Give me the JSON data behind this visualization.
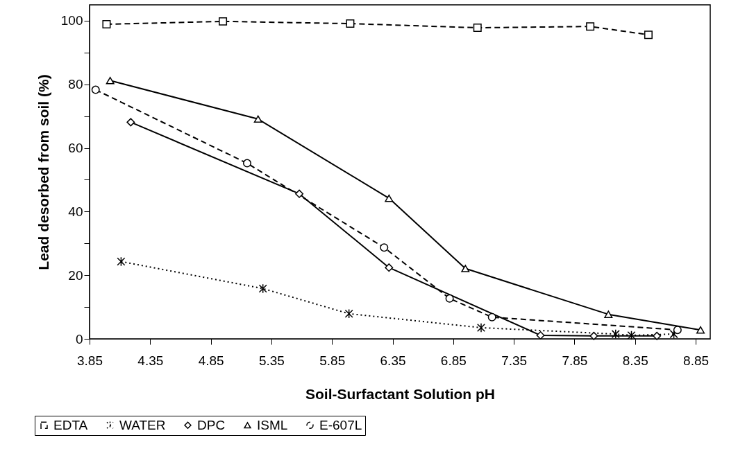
{
  "chart_data": {
    "type": "line",
    "xlabel": "Soil-Surfactant Solution pH",
    "ylabel": "Lead desorbed from soil (%)",
    "xlim": [
      3.85,
      8.97
    ],
    "xticks": [
      3.85,
      4.35,
      4.85,
      5.35,
      5.85,
      6.35,
      6.85,
      7.35,
      7.85,
      8.35,
      8.85
    ],
    "ylim": [
      0,
      105
    ],
    "yticks": [
      0,
      {
        "value": 10,
        "label": null
      },
      20,
      {
        "value": 30,
        "label": null
      },
      40,
      {
        "value": 50,
        "label": null
      },
      60,
      {
        "value": 70,
        "label": null
      },
      80,
      {
        "value": 90,
        "label": null
      },
      100
    ],
    "legend": "bottom",
    "grid": false,
    "series": [
      {
        "name": "EDTA",
        "color": "#000000",
        "marker": "square",
        "line_style": "dashed",
        "x": [
          3.99,
          4.95,
          6.0,
          7.05,
          7.98,
          8.46
        ],
        "values": [
          98.9,
          99.8,
          99.1,
          97.8,
          98.2,
          95.6
        ]
      },
      {
        "name": "WATER",
        "color": "#000000",
        "marker": "cross",
        "line_style": "dotted",
        "x": [
          4.11,
          5.28,
          5.99,
          7.08,
          8.19,
          8.32,
          8.67
        ],
        "values": [
          24.3,
          15.8,
          7.9,
          3.5,
          1.5,
          1.1,
          1.5
        ]
      },
      {
        "name": "DPC",
        "color": "#000000",
        "marker": "diamond",
        "line_style": "solid",
        "x": [
          4.19,
          5.58,
          6.32,
          7.57,
          8.01,
          8.53
        ],
        "values": [
          68.1,
          45.6,
          22.4,
          1.1,
          0.9,
          0.9
        ]
      },
      {
        "name": "ISML",
        "color": "#000000",
        "marker": "triangle",
        "line_style": "solid",
        "x": [
          4.02,
          5.24,
          6.32,
          6.95,
          8.13,
          8.89
        ],
        "values": [
          81.2,
          69.1,
          44.2,
          22.1,
          7.7,
          2.8
        ]
      },
      {
        "name": "E-607L",
        "color": "#000000",
        "marker": "circle",
        "line_style": "dashed",
        "x": [
          3.9,
          5.15,
          6.28,
          6.82,
          7.17,
          8.7
        ],
        "values": [
          78.3,
          55.2,
          28.7,
          12.7,
          6.8,
          2.8
        ]
      }
    ]
  }
}
